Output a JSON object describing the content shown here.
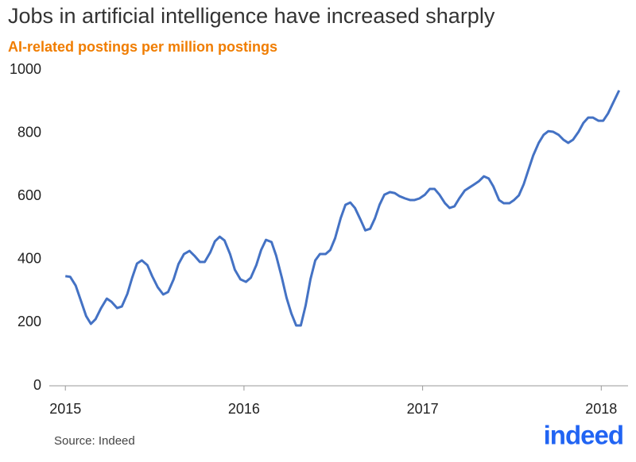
{
  "chart_data": {
    "type": "line",
    "title": "Jobs in artificial intelligence have increased sharply",
    "subtitle": "AI-related postings per million postings",
    "x": [
      2015.0,
      2015.027,
      2015.058,
      2015.089,
      2015.116,
      2015.143,
      2015.169,
      2015.2,
      2015.232,
      2015.258,
      2015.29,
      2015.316,
      2015.347,
      2015.374,
      2015.401,
      2015.428,
      2015.459,
      2015.486,
      2015.517,
      2015.548,
      2015.575,
      2015.606,
      2015.633,
      2015.664,
      2015.695,
      2015.722,
      2015.753,
      2015.78,
      2015.811,
      2015.837,
      2015.864,
      2015.891,
      2015.922,
      2015.949,
      2015.98,
      2016.011,
      2016.038,
      2016.069,
      2016.096,
      2016.123,
      2016.154,
      2016.18,
      2016.212,
      2016.238,
      2016.265,
      2016.292,
      2016.318,
      2016.345,
      2016.372,
      2016.399,
      2016.425,
      2016.457,
      2016.483,
      2016.51,
      2016.541,
      2016.568,
      2016.595,
      2016.621,
      2016.653,
      2016.679,
      2016.706,
      2016.733,
      2016.759,
      2016.786,
      2016.817,
      2016.844,
      2016.871,
      2016.902,
      2016.929,
      2016.955,
      2016.982,
      2017.013,
      2017.04,
      2017.067,
      2017.094,
      2017.125,
      2017.151,
      2017.178,
      2017.205,
      2017.236,
      2017.263,
      2017.29,
      2017.316,
      2017.343,
      2017.37,
      2017.396,
      2017.428,
      2017.454,
      2017.486,
      2017.512,
      2017.539,
      2017.566,
      2017.592,
      2017.619,
      2017.65,
      2017.677,
      2017.704,
      2017.731,
      2017.762,
      2017.788,
      2017.815,
      2017.842,
      2017.873,
      2017.9,
      2017.927,
      2017.953,
      2017.984,
      2018.011,
      2018.038,
      2018.065,
      2018.1
    ],
    "series": [
      {
        "color": "#4472c4",
        "values": [
          347,
          345,
          317,
          266,
          221,
          196,
          211,
          246,
          276,
          266,
          246,
          251,
          291,
          342,
          387,
          397,
          382,
          347,
          312,
          289,
          297,
          337,
          385,
          417,
          427,
          412,
          392,
          392,
          422,
          457,
          472,
          460,
          417,
          367,
          337,
          329,
          342,
          382,
          430,
          462,
          455,
          412,
          342,
          279,
          229,
          191,
          191,
          254,
          337,
          397,
          417,
          417,
          430,
          467,
          530,
          573,
          580,
          563,
          525,
          492,
          497,
          530,
          573,
          605,
          613,
          610,
          600,
          593,
          588,
          588,
          593,
          605,
          623,
          623,
          605,
          578,
          563,
          568,
          593,
          618,
          628,
          638,
          648,
          663,
          656,
          631,
          588,
          578,
          578,
          588,
          603,
          638,
          683,
          729,
          769,
          794,
          806,
          804,
          794,
          779,
          769,
          779,
          804,
          832,
          849,
          849,
          839,
          839,
          862,
          894,
          935
        ]
      }
    ],
    "xlim": [
      2014.91,
      2018.15
    ],
    "xticks": [
      2015,
      2016,
      2017,
      2018
    ],
    "ylim": [
      0,
      1000
    ],
    "yticks": [
      0,
      200,
      400,
      600,
      800,
      1000
    ]
  },
  "source": "Source: Indeed",
  "logo": "indeed"
}
